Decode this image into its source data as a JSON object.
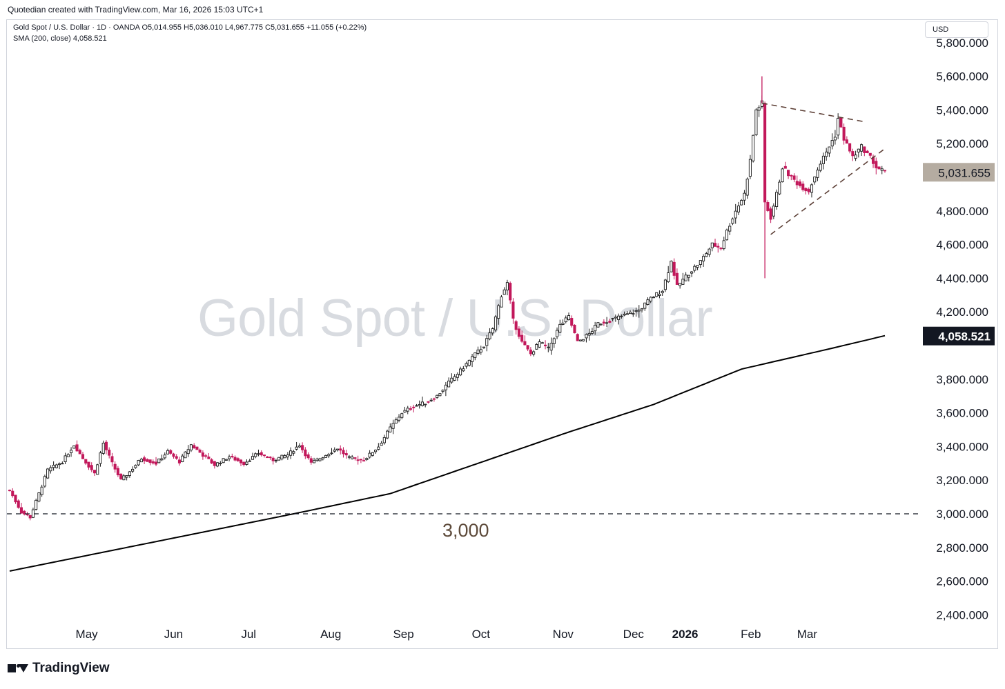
{
  "header": {
    "note": "Quotedian created with TradingView.com, Mar 16, 2026 15:03 UTC+1"
  },
  "legend": {
    "ohlc_line": "Gold Spot / U.S. Dollar · 1D · OANDA  O5,014.955  H5,036.010  L4,967.775  C5,031.655  +11.055 (+0.22%)",
    "sma_line": "SMA (200, close)  4,058.521"
  },
  "currency_button": "USD",
  "watermark": "Gold Spot / U.S. Dollar",
  "footer": {
    "brand": "TradingView"
  },
  "colors": {
    "up_candle": "#1a1a1a",
    "down_candle": "#c2185b",
    "sma_line": "#000000",
    "last_price_badge": "#b5aca1",
    "sma_badge": "#131722",
    "trendline": "#5d4037"
  },
  "chart_data": {
    "type": "candlestick",
    "symbol": "Gold Spot / U.S. Dollar",
    "timeframe": "1D",
    "source": "OANDA",
    "y_axis_ticks": [
      "5,800.000",
      "5,600.000",
      "5,400.000",
      "5,200.000",
      "4,800.000",
      "4,600.000",
      "4,400.000",
      "4,200.000",
      "3,800.000",
      "3,600.000",
      "3,400.000",
      "3,200.000",
      "3,000.000",
      "2,800.000",
      "2,600.000",
      "2,400.000"
    ],
    "y_tick_values": [
      5800,
      5600,
      5400,
      5200,
      4800,
      4600,
      4400,
      4200,
      3800,
      3600,
      3400,
      3200,
      3000,
      2800,
      2600,
      2400
    ],
    "ylim": [
      2330,
      5860
    ],
    "x_axis_labels": [
      {
        "label": "May",
        "bold": false
      },
      {
        "label": "Jun",
        "bold": false
      },
      {
        "label": "Jul",
        "bold": false
      },
      {
        "label": "Aug",
        "bold": false
      },
      {
        "label": "Sep",
        "bold": false
      },
      {
        "label": "Oct",
        "bold": false
      },
      {
        "label": "Nov",
        "bold": false
      },
      {
        "label": "Dec",
        "bold": false
      },
      {
        "label": "2026",
        "bold": true
      },
      {
        "label": "Feb",
        "bold": false
      },
      {
        "label": "Mar",
        "bold": false
      }
    ],
    "price_path": [
      [
        0,
        3140
      ],
      [
        4,
        3010
      ],
      [
        7,
        2980
      ],
      [
        10,
        3120
      ],
      [
        13,
        3260
      ],
      [
        18,
        3310
      ],
      [
        22,
        3410
      ],
      [
        25,
        3330
      ],
      [
        29,
        3240
      ],
      [
        32,
        3420
      ],
      [
        35,
        3300
      ],
      [
        38,
        3200
      ],
      [
        41,
        3250
      ],
      [
        45,
        3330
      ],
      [
        50,
        3300
      ],
      [
        54,
        3370
      ],
      [
        58,
        3310
      ],
      [
        62,
        3410
      ],
      [
        66,
        3350
      ],
      [
        70,
        3290
      ],
      [
        75,
        3340
      ],
      [
        80,
        3300
      ],
      [
        85,
        3360
      ],
      [
        90,
        3320
      ],
      [
        95,
        3350
      ],
      [
        99,
        3410
      ],
      [
        103,
        3300
      ],
      [
        107,
        3340
      ],
      [
        112,
        3390
      ],
      [
        116,
        3330
      ],
      [
        121,
        3320
      ],
      [
        126,
        3400
      ],
      [
        130,
        3510
      ],
      [
        134,
        3600
      ],
      [
        138,
        3640
      ],
      [
        142,
        3660
      ],
      [
        146,
        3700
      ],
      [
        150,
        3780
      ],
      [
        154,
        3850
      ],
      [
        158,
        3930
      ],
      [
        162,
        4000
      ],
      [
        165,
        4100
      ],
      [
        168,
        4300
      ],
      [
        170,
        4370
      ],
      [
        172,
        4150
      ],
      [
        175,
        4020
      ],
      [
        178,
        3950
      ],
      [
        181,
        4020
      ],
      [
        184,
        3980
      ],
      [
        188,
        4120
      ],
      [
        191,
        4170
      ],
      [
        194,
        4020
      ],
      [
        198,
        4070
      ],
      [
        201,
        4130
      ],
      [
        205,
        4150
      ],
      [
        210,
        4180
      ],
      [
        215,
        4210
      ],
      [
        219,
        4280
      ],
      [
        223,
        4330
      ],
      [
        226,
        4500
      ],
      [
        228,
        4350
      ],
      [
        232,
        4430
      ],
      [
        236,
        4500
      ],
      [
        240,
        4600
      ],
      [
        243,
        4580
      ],
      [
        245,
        4680
      ],
      [
        248,
        4800
      ],
      [
        251,
        4900
      ],
      [
        253,
        5100
      ],
      [
        255,
        5400
      ],
      [
        257,
        5440
      ],
      [
        258,
        4850
      ],
      [
        260,
        4760
      ],
      [
        262,
        4900
      ],
      [
        264,
        5060
      ],
      [
        267,
        5000
      ],
      [
        270,
        4950
      ],
      [
        273,
        4920
      ],
      [
        276,
        5050
      ],
      [
        279,
        5150
      ],
      [
        282,
        5250
      ],
      [
        283,
        5350
      ],
      [
        285,
        5230
      ],
      [
        288,
        5120
      ],
      [
        291,
        5180
      ],
      [
        294,
        5120
      ],
      [
        296,
        5060
      ],
      [
        299,
        5030
      ]
    ],
    "candles_shown": 300,
    "sma": {
      "name": "SMA (200, close)",
      "period": 200,
      "last_value": 4058.521,
      "path": [
        [
          0,
          2660
        ],
        [
          60,
          2870
        ],
        [
          97,
          3000
        ],
        [
          130,
          3120
        ],
        [
          160,
          3300
        ],
        [
          190,
          3480
        ],
        [
          220,
          3650
        ],
        [
          250,
          3860
        ],
        [
          280,
          3980
        ],
        [
          299,
          4058.521
        ]
      ]
    },
    "last_price": 5031.655,
    "last_price_label": "5,031.655",
    "sma_label": "4,058.521",
    "spikes": [
      {
        "index": 257,
        "high": 5600,
        "low": 5440
      },
      {
        "index": 258,
        "high": 4850,
        "low": 4400
      }
    ],
    "horizontal_line": {
      "price": 3000,
      "label": "3,000",
      "style": "dashed"
    },
    "trendlines": [
      {
        "from": [
          257,
          5440
        ],
        "to": [
          292,
          5330
        ],
        "style": "dashed"
      },
      {
        "from": [
          260,
          4660
        ],
        "to": [
          299,
          5170
        ],
        "style": "dashed"
      }
    ]
  }
}
